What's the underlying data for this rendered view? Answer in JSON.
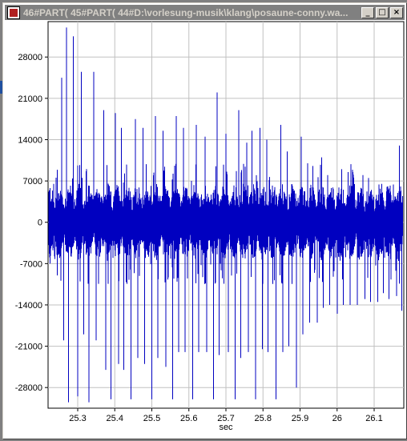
{
  "window": {
    "title": "46#PART( 45#PART( 44#D:\\vorlesung-musik\\klang\\posaune-conny.wa...",
    "buttons": {
      "minimize": "_",
      "maximize": "□",
      "close": "×"
    }
  },
  "chart_data": {
    "type": "line",
    "xlabel": "sec",
    "ylabel": "",
    "title": "",
    "xlim": [
      25.22,
      26.18
    ],
    "ylim": [
      -31500,
      34000
    ],
    "x_ticks": [
      25.3,
      25.4,
      25.5,
      25.6,
      25.7,
      25.8,
      25.9,
      26,
      26.1
    ],
    "x_tick_labels": [
      "25.3",
      "25.4",
      "25.5",
      "25.6",
      "25.7",
      "25.8",
      "25.9",
      "26",
      "26.1"
    ],
    "y_ticks": [
      28000,
      21000,
      14000,
      7000,
      0,
      -7000,
      -14000,
      -21000,
      -28000
    ],
    "y_tick_labels": [
      "28000",
      "21000",
      "14000",
      "7000",
      "0",
      "-7000",
      "-14000",
      "-21000",
      "-28000"
    ],
    "grid": true,
    "line_color": "#0000c0",
    "series": [
      {
        "peaks": [
          [
            25.225,
            -7000
          ],
          [
            25.235,
            6500
          ],
          [
            25.245,
            -9000
          ],
          [
            25.252,
            4500
          ],
          [
            25.257,
            24500
          ],
          [
            25.262,
            -20000
          ],
          [
            25.27,
            33000
          ],
          [
            25.275,
            -30500
          ],
          [
            25.288,
            31500
          ],
          [
            25.3,
            -29500
          ],
          [
            25.31,
            25500
          ],
          [
            25.316,
            -19000
          ],
          [
            25.33,
            -30500
          ],
          [
            25.343,
            25500
          ],
          [
            25.35,
            -20000
          ],
          [
            25.37,
            19000
          ],
          [
            25.376,
            -25000
          ],
          [
            25.39,
            -30000
          ],
          [
            25.402,
            18500
          ],
          [
            25.41,
            -24000
          ],
          [
            25.418,
            16000
          ],
          [
            25.424,
            -25000
          ],
          [
            25.444,
            -30000
          ],
          [
            25.456,
            17500
          ],
          [
            25.462,
            -23000
          ],
          [
            25.476,
            16000
          ],
          [
            25.48,
            -24000
          ],
          [
            25.5,
            -30000
          ],
          [
            25.51,
            18000
          ],
          [
            25.516,
            -23000
          ],
          [
            25.53,
            15500
          ],
          [
            25.538,
            -24500
          ],
          [
            25.556,
            -30000
          ],
          [
            25.566,
            18000
          ],
          [
            25.572,
            -22000
          ],
          [
            25.585,
            16000
          ],
          [
            25.59,
            -22000
          ],
          [
            25.61,
            -30000
          ],
          [
            25.62,
            16500
          ],
          [
            25.626,
            -22000
          ],
          [
            25.644,
            14500
          ],
          [
            25.648,
            -22000
          ],
          [
            25.666,
            -30000
          ],
          [
            25.676,
            22000
          ],
          [
            25.682,
            -22500
          ],
          [
            25.7,
            15000
          ],
          [
            25.706,
            -22000
          ],
          [
            25.725,
            -30000
          ],
          [
            25.735,
            19000
          ],
          [
            25.74,
            -23000
          ],
          [
            25.756,
            13500
          ],
          [
            25.76,
            -22000
          ],
          [
            25.77,
            15500
          ],
          [
            25.78,
            -30000
          ],
          [
            25.792,
            16000
          ],
          [
            25.798,
            -21500
          ],
          [
            25.81,
            14000
          ],
          [
            25.814,
            -22000
          ],
          [
            25.835,
            -30000
          ],
          [
            25.848,
            16500
          ],
          [
            25.853,
            -22000
          ],
          [
            25.865,
            12000
          ],
          [
            25.87,
            -21000
          ],
          [
            25.89,
            -28000
          ],
          [
            25.903,
            14500
          ],
          [
            25.908,
            -19000
          ],
          [
            25.92,
            10000
          ],
          [
            25.926,
            -17000
          ],
          [
            25.946,
            -17000
          ],
          [
            25.958,
            11000
          ],
          [
            25.963,
            -14500
          ],
          [
            25.975,
            8000
          ],
          [
            25.98,
            -14000
          ],
          [
            26,
            -15500
          ],
          [
            26.012,
            9000
          ],
          [
            26.017,
            -14000
          ],
          [
            26.03,
            8500
          ],
          [
            26.035,
            -14000
          ],
          [
            26.055,
            -14000
          ],
          [
            26.07,
            8000
          ],
          [
            26.075,
            -13000
          ],
          [
            26.085,
            7500
          ],
          [
            26.09,
            -13500
          ],
          [
            26.11,
            -13500
          ],
          [
            26.12,
            6500
          ],
          [
            26.125,
            -12000
          ],
          [
            26.135,
            6000
          ],
          [
            26.14,
            -13000
          ],
          [
            26.16,
            -12500
          ],
          [
            26.168,
            13000
          ],
          [
            26.175,
            -15000
          ]
        ]
      }
    ]
  }
}
